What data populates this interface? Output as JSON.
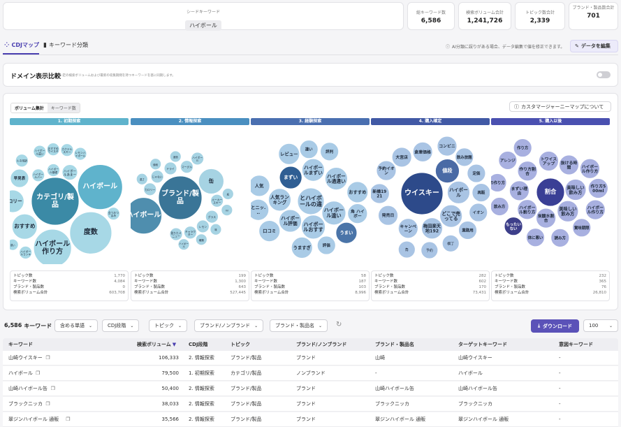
{
  "summary": {
    "seed_label": "シードキーワード",
    "seed_value": "ハイボール",
    "metrics": [
      {
        "label": "総キーワード数",
        "value": "6,586"
      },
      {
        "label": "検索ボリューム合計",
        "value": "1,241,726"
      },
      {
        "label": "トピック数合計",
        "value": "2,339"
      },
      {
        "label": "ブランド・製品数合計",
        "value": "701"
      }
    ]
  },
  "tabs": [
    {
      "label": "CDJマップ",
      "icon": "bubbles-icon",
      "active": true
    },
    {
      "label": "キーワード分類",
      "icon": "bar-chart-icon",
      "active": false
    }
  ],
  "notice": "AI分類に誤りがある場合、データ編集で値を修正できます。",
  "edit_button": "データを編集",
  "domain_compare": {
    "title": "ドメイン表示比較",
    "desc": "一定の検索ボリュームおよび最新の収集期間を持つキーワードを基に同期します。"
  },
  "view_toggle": [
    "ボリューム集計",
    "キーワード数"
  ],
  "about_button": "カスタマージャーニーマップについて",
  "stages": [
    {
      "label": "1. 初期探索",
      "color": "#5fb3cc",
      "bubbles": [
        {
          "t": "度数",
          "v": 30,
          "c": "#a7d8e6"
        },
        {
          "t": "カテゴリ/製品",
          "v": 34,
          "c": "#3b8aa6",
          "dark": true
        },
        {
          "t": "ハイボール",
          "v": 32,
          "c": "#5fb3cc",
          "dark": true
        },
        {
          "t": "ハイボール作り方",
          "v": 27,
          "c": "#a7d8e6"
        },
        {
          "t": "おすすめ",
          "v": 18,
          "c": "#a7d8e6"
        },
        {
          "t": "カロリー",
          "v": 16,
          "c": "#a7d8e6"
        },
        {
          "t": "早見表",
          "v": 13,
          "c": "#a7d8e6"
        },
        {
          "t": "焼酎",
          "v": 8,
          "c": "#a7d8e6"
        },
        {
          "t": "ハイボールバー",
          "v": 9,
          "c": "#a7d8e6"
        },
        {
          "t": "ハイボール基礎",
          "v": 9,
          "c": "#a7d8e6"
        },
        {
          "t": "ルネ用語",
          "v": 9,
          "c": "#a7d8e6"
        },
        {
          "t": "濃い",
          "v": 8,
          "c": "#a7d8e6"
        },
        {
          "t": "ハイボール違い",
          "v": 9,
          "c": "#a7d8e6"
        },
        {
          "t": "おすすめウイスキー",
          "v": 9,
          "c": "#a7d8e6"
        },
        {
          "t": "カクテルスキー",
          "v": 9,
          "c": "#a7d8e6"
        },
        {
          "t": "レモンハイボール",
          "v": 9,
          "c": "#a7d8e6"
        },
        {
          "t": "会うおつまみ",
          "v": 9,
          "c": "#a7d8e6"
        },
        {
          "t": "ハイボールランキング",
          "v": 9,
          "c": "#a7d8e6"
        },
        {
          "t": "種類(ほ)",
          "v": 8,
          "c": "#a7d8e6"
        },
        {
          "t": "ハイボールあまー",
          "v": 11,
          "c": "#a7d8e6"
        }
      ],
      "stats": [
        [
          "トピック数",
          "1,770"
        ],
        [
          "キーワード数",
          "4,084"
        ],
        [
          "ブランド・製品数",
          "0"
        ],
        [
          "検索ボリューム合計",
          "603,708"
        ]
      ]
    },
    {
      "label": "2. 情報探索",
      "color": "#4a8fc0",
      "bubbles": [
        {
          "t": "ブランド/製品",
          "v": 31,
          "c": "#3a7597",
          "dark": true
        },
        {
          "t": "ハイボール",
          "v": 26,
          "c": "#4f8eae",
          "dark": true
        },
        {
          "t": "缶",
          "v": 18,
          "c": "#a6d3e3"
        },
        {
          "t": "カロリー",
          "v": 9,
          "c": "#a6d3e3"
        },
        {
          "t": "濃さ",
          "v": 8,
          "c": "#a6d3e3"
        },
        {
          "t": "値段",
          "v": 8,
          "c": "#a6d3e3"
        },
        {
          "t": "じゃない",
          "v": 9,
          "c": "#a6d3e3"
        },
        {
          "t": "ドライ",
          "v": 9,
          "c": "#a6d3e3"
        },
        {
          "t": "マーグル",
          "v": 9,
          "c": "#a6d3e3"
        },
        {
          "t": "メーカースキー",
          "v": 9,
          "c": "#a6d3e3"
        },
        {
          "t": "グラス",
          "v": 9,
          "c": "#a6d3e3"
        },
        {
          "t": "レモン",
          "v": 9,
          "c": "#a6d3e3"
        },
        {
          "t": "キャラクター",
          "v": 9,
          "c": "#a6d3e3"
        },
        {
          "t": "酒造",
          "v": 8,
          "c": "#a6d3e3"
        },
        {
          "t": "割りたメニュー",
          "v": 9,
          "c": "#a6d3e3"
        },
        {
          "t": "ハイボール",
          "v": 9,
          "c": "#a6d3e3"
        },
        {
          "t": "瓶",
          "v": 8,
          "c": "#a6d3e3"
        },
        {
          "t": "ml",
          "v": 8,
          "c": "#a6d3e3"
        },
        {
          "t": "味",
          "v": 8,
          "c": "#a6d3e3"
        },
        {
          "t": "種類",
          "v": 8,
          "c": "#a6d3e3"
        },
        {
          "t": "ハイボール",
          "v": 8,
          "c": "#a6d3e3"
        }
      ],
      "stats": [
        [
          "トピック数",
          "199"
        ],
        [
          "キーワード数",
          "1,300"
        ],
        [
          "ブランド・製品数",
          "643"
        ],
        [
          "検索ボリューム合計",
          "527,445"
        ]
      ]
    },
    {
      "label": "3. 経験探索",
      "color": "#4a6fb0",
      "bubbles": [
        {
          "t": "評価",
          "v": 13,
          "c": "#a9cbe6"
        },
        {
          "t": "おすすめ",
          "v": 15,
          "c": "#a9cbe6"
        },
        {
          "t": "ハイボール評価",
          "v": 16,
          "c": "#a9cbe6"
        },
        {
          "t": "うまい",
          "v": 15,
          "c": "#4a74a8",
          "dark": true
        },
        {
          "t": "ハイボール違い",
          "v": 17,
          "c": "#a9cbe6"
        },
        {
          "t": "人気ランキング",
          "v": 16,
          "c": "#a9cbe6"
        },
        {
          "t": "うますぎ",
          "v": 15,
          "c": "#a9cbe6"
        },
        {
          "t": "とハイボールの違い",
          "v": 19,
          "c": "#a9cbe6"
        },
        {
          "t": "口コミ",
          "v": 15,
          "c": "#a9cbe6"
        },
        {
          "t": "とニッ...",
          "v": 15,
          "c": "#a9cbe6"
        },
        {
          "t": "まずい",
          "v": 16,
          "c": "#2f5e93",
          "dark": true
        },
        {
          "t": "人気",
          "v": 15,
          "c": "#a9cbe6"
        },
        {
          "t": "違い",
          "v": 13,
          "c": "#a9cbe6"
        },
        {
          "t": "ハイボールまずい",
          "v": 16,
          "c": "#a9cbe6"
        },
        {
          "t": "評判",
          "v": 13,
          "c": "#a9cbe6"
        },
        {
          "t": "レビュー",
          "v": 15,
          "c": "#a9cbe6"
        },
        {
          "t": "ハイボールおすすめ",
          "v": 17,
          "c": "#a9cbe6"
        },
        {
          "t": "角 ハイボー",
          "v": 14,
          "c": "#a9cbe6"
        },
        {
          "t": "ハイボール通違い",
          "v": 16,
          "c": "#a9cbe6"
        }
      ],
      "stats": [
        [
          "トピック数",
          "58"
        ],
        [
          "キーワード数",
          "187"
        ],
        [
          "ブランド・製品数",
          "103"
        ],
        [
          "検索ボリューム合計",
          "8,996"
        ]
      ]
    },
    {
      "label": "4. 購入確定",
      "color": "#4159a5",
      "bubbles": [
        {
          "t": "横丁",
          "v": 12,
          "c": "#a9c4e4"
        },
        {
          "t": "キャンペーン",
          "v": 14,
          "c": "#a9c4e4"
        },
        {
          "t": "発売日",
          "v": 14,
          "c": "#a9c4e4"
        },
        {
          "t": "新橋1921",
          "v": 14,
          "c": "#a9c4e4"
        },
        {
          "t": "ウイスキー",
          "v": 30,
          "c": "#2d4a8a",
          "dark": true
        },
        {
          "t": "予約",
          "v": 12,
          "c": "#a9c4e4"
        },
        {
          "t": "飲み放題",
          "v": 13,
          "c": "#a9c4e4"
        },
        {
          "t": "定価",
          "v": 13,
          "c": "#a9c4e4"
        },
        {
          "t": "ハイボール",
          "v": 16,
          "c": "#a9c4e4"
        },
        {
          "t": "値段",
          "v": 17,
          "c": "#4a6aa5",
          "dark": true
        },
        {
          "t": "再販",
          "v": 13,
          "c": "#a9c4e4"
        },
        {
          "t": "予約イオン",
          "v": 14,
          "c": "#a9c4e4"
        },
        {
          "t": "大宮店",
          "v": 14,
          "c": "#a9c4e4"
        },
        {
          "t": "倉庫価格",
          "v": 14,
          "c": "#a9c4e4"
        },
        {
          "t": "梅田楽天地1923",
          "v": 15,
          "c": "#a9c4e4"
        },
        {
          "t": "コンビニ",
          "v": 14,
          "c": "#a9c4e4"
        },
        {
          "t": "角",
          "v": 12,
          "c": "#a9c4e4"
        },
        {
          "t": "どこで売ってる",
          "v": 16,
          "c": "#a9c4e4"
        },
        {
          "t": "イオン",
          "v": 13,
          "c": "#a9c4e4"
        },
        {
          "t": "業務用",
          "v": 13,
          "c": "#a9c4e4"
        }
      ],
      "stats": [
        [
          "トピック数",
          "282"
        ],
        [
          "キーワード数",
          "602"
        ],
        [
          "ブランド・製品数",
          "170"
        ],
        [
          "検索ボリューム合計",
          "73,431"
        ]
      ]
    },
    {
      "label": "5. 購入以後",
      "color": "#4a50b0",
      "bubbles": [
        {
          "t": "賞味期限",
          "v": 13,
          "c": "#a8b0e0"
        },
        {
          "t": "読み方",
          "v": 13,
          "c": "#a8b0e0"
        },
        {
          "t": "炭酸水割合",
          "v": 14,
          "c": "#a8b0e0"
        },
        {
          "t": "ハイボール割り方",
          "v": 14,
          "c": "#a8b0e0"
        },
        {
          "t": "まずい理由",
          "v": 14,
          "c": "#a8b0e0"
        },
        {
          "t": "作り方割合",
          "v": 14,
          "c": "#a8b0e0"
        },
        {
          "t": "体に悪い",
          "v": 13,
          "c": "#a8b0e0"
        },
        {
          "t": "もったいない",
          "v": 13,
          "c": "#3d3f8a",
          "dark": true
        },
        {
          "t": "飲み方",
          "v": 13,
          "c": "#a8b0e0"
        },
        {
          "t": "の作り方",
          "v": 13,
          "c": "#a8b0e0"
        },
        {
          "t": "トワイスアップ",
          "v": 14,
          "c": "#a8b0e0"
        },
        {
          "t": "美味しい飲み方",
          "v": 15,
          "c": "#a8b0e0"
        },
        {
          "t": "アレンジ",
          "v": 13,
          "c": "#a8b0e0"
        },
        {
          "t": "作り方",
          "v": 13,
          "c": "#a8b0e0"
        },
        {
          "t": "割合",
          "v": 20,
          "c": "#3a3f95",
          "dark": true
        },
        {
          "t": "美味しい飲み方",
          "v": 15,
          "c": "#a8b0e0"
        },
        {
          "t": "抜ける時間",
          "v": 14,
          "c": "#a8b0e0"
        },
        {
          "t": "ハイボール作り方",
          "v": 14,
          "c": "#a8b0e0"
        },
        {
          "t": "作り方500ml",
          "v": 14,
          "c": "#a8b0e0"
        },
        {
          "t": "ハイボール作り方",
          "v": 14,
          "c": "#a8b0e0"
        }
      ],
      "stats": [
        [
          "トピック数",
          "232"
        ],
        [
          "キーワード数",
          "365"
        ],
        [
          "ブランド・製品数",
          "76"
        ],
        [
          "検索ボリューム合計",
          "26,810"
        ]
      ]
    }
  ],
  "keyword_bar": {
    "count": "6,586",
    "count_label": "キーワード",
    "filters": [
      "含める単語",
      "CDJ段階",
      "トピック",
      "ブランド/ノンブランド",
      "ブランド・製品名"
    ],
    "download": "ダウンロード",
    "page_size": "100"
  },
  "table": {
    "headers": [
      "キーワード",
      "検索ボリューム",
      "CDJ段階",
      "トピック",
      "ブランド/ノンブランド",
      "ブランド・製品名",
      "ターゲットキーワード",
      "意図キーワード"
    ],
    "rows": [
      [
        "山崎ウイスキー",
        "106,333",
        "2. 情報探索",
        "ブランド/製品",
        "ブランド",
        "山崎",
        "山崎ウイスキー",
        "-"
      ],
      [
        "ハイボール",
        "79,500",
        "1. 初期探索",
        "カテゴリ/製品",
        "ノンブランド",
        "-",
        "ハイボール",
        "-"
      ],
      [
        "山崎ハイボール缶",
        "50,400",
        "2. 情報探索",
        "ブランド/製品",
        "ブランド",
        "山崎ハイボール缶",
        "山崎ハイボール缶",
        "-"
      ],
      [
        "ブラックニッカ",
        "38,033",
        "2. 情報探索",
        "ブランド/製品",
        "ブランド",
        "ブラックニッカ",
        "ブラックニッカ",
        "-"
      ],
      [
        "翠ジンハイボール 通販",
        "35,566",
        "2. 情報探索",
        "ブランド/製品",
        "ブランド",
        "翠ジンハイボール 通販",
        "翠ジンハイボール 通販",
        "-"
      ]
    ]
  }
}
